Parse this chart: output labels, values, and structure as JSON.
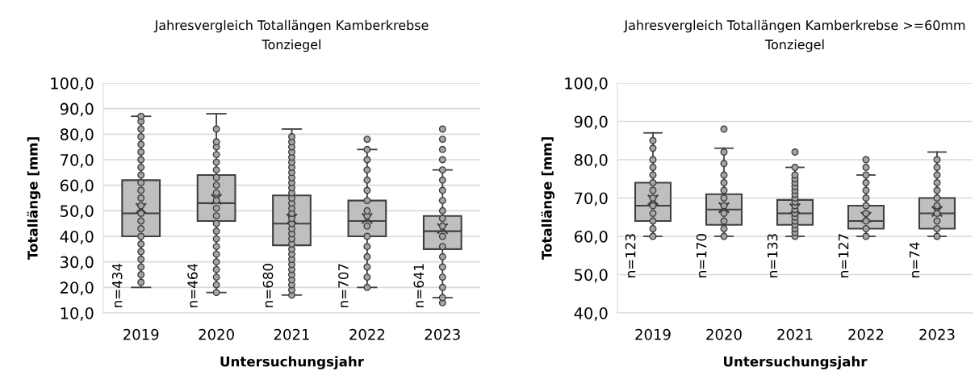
{
  "chart_data": [
    {
      "type": "box",
      "title": "Jahresvergleich Totallängen Kamberkrebse",
      "subtitle": "Tonziegel",
      "xlabel": "Untersuchungsjahr",
      "ylabel": "Totallänge [mm]",
      "x": [
        2019,
        2020,
        2021,
        2022,
        2023
      ],
      "color": "#bfbfbf",
      "boxes": [
        {
          "low": 20,
          "q1": 40,
          "median": 49,
          "q3": 62,
          "high": 87,
          "mean": 51
        },
        {
          "low": 18,
          "q1": 46,
          "median": 53,
          "q3": 64,
          "high": 88,
          "mean": 54.5
        },
        {
          "low": 17,
          "q1": 36.5,
          "median": 45,
          "q3": 56,
          "high": 82,
          "mean": 46.8
        },
        {
          "low": 20,
          "q1": 40,
          "median": 46,
          "q3": 54,
          "high": 74,
          "mean": 47
        },
        {
          "low": 16,
          "q1": 35,
          "median": 42,
          "q3": 48,
          "high": 66,
          "mean": 43
        }
      ],
      "series": [
        {
          "type": "scatter",
          "color": "#a6a6a6",
          "marker": "circle",
          "x": [
            2019,
            2019,
            2019,
            2019,
            2019,
            2019,
            2019,
            2019,
            2019,
            2019,
            2019,
            2019,
            2019,
            2019,
            2019,
            2019,
            2019,
            2019,
            2019,
            2019,
            2019,
            2019,
            2019,
            2020,
            2020,
            2020,
            2020,
            2020,
            2020,
            2020,
            2020,
            2020,
            2020,
            2020,
            2020,
            2020,
            2020,
            2020,
            2020,
            2020,
            2020,
            2020,
            2020,
            2020,
            2020,
            2021,
            2021,
            2021,
            2021,
            2021,
            2021,
            2021,
            2021,
            2021,
            2021,
            2021,
            2021,
            2021,
            2021,
            2021,
            2021,
            2021,
            2021,
            2021,
            2021,
            2021,
            2021,
            2021,
            2021,
            2021,
            2021,
            2021,
            2021,
            2021,
            2021,
            2021,
            2021,
            2022,
            2022,
            2022,
            2022,
            2022,
            2022,
            2022,
            2022,
            2022,
            2022,
            2022,
            2022,
            2022,
            2022,
            2022,
            2022,
            2023,
            2023,
            2023,
            2023,
            2023,
            2023,
            2023,
            2023,
            2023,
            2023,
            2023,
            2023,
            2023,
            2023,
            2023,
            2023,
            2023,
            2023,
            2023
          ],
          "values": [
            22,
            25,
            28,
            31,
            34,
            37,
            40,
            43,
            46,
            49,
            52,
            55,
            58,
            61,
            64,
            67,
            70,
            73,
            76,
            79,
            82,
            85,
            87,
            18,
            21,
            24,
            27,
            30,
            33,
            36,
            39,
            42,
            45,
            48,
            51,
            54,
            57,
            60,
            63,
            66,
            69,
            72,
            75,
            77,
            82,
            17,
            19,
            21,
            23,
            25,
            27,
            29,
            31,
            33,
            35,
            37,
            39,
            41,
            43,
            45,
            47,
            49,
            51,
            53,
            55,
            57,
            59,
            61,
            63,
            65,
            67,
            69,
            71,
            73,
            75,
            77,
            79,
            20,
            24,
            28,
            32,
            36,
            40,
            44,
            48,
            50,
            54,
            58,
            62,
            66,
            70,
            74,
            78,
            14,
            16,
            20,
            24,
            28,
            32,
            36,
            40,
            44,
            47,
            50,
            54,
            58,
            62,
            66,
            70,
            74,
            78,
            82
          ]
        }
      ],
      "xlim": [
        2018.5,
        2023.5
      ],
      "xticks": [
        2019,
        2020,
        2021,
        2022,
        2023
      ],
      "ylim": [
        10,
        100
      ],
      "yticks": [
        {
          "value": 10,
          "label": "10,0"
        },
        {
          "value": 20,
          "label": "20,0"
        },
        {
          "value": 30,
          "label": "30,0"
        },
        {
          "value": 40,
          "label": "40,0"
        },
        {
          "value": 50,
          "label": "50,0"
        },
        {
          "value": 60,
          "label": "60,0"
        },
        {
          "value": 70,
          "label": "70,0"
        },
        {
          "value": 80,
          "label": "80,0"
        },
        {
          "value": 90,
          "label": "90,0"
        },
        {
          "value": 100,
          "label": "100,0"
        }
      ],
      "grid": "y",
      "annotations": [
        "n=434",
        "n=464",
        "n=680",
        "n=707",
        "n=641"
      ]
    },
    {
      "type": "box",
      "title": "Jahresvergleich Totallängen Kamberkrebse >=60mm",
      "subtitle": "Tonziegel",
      "xlabel": "Untersuchungsjahr",
      "ylabel": "Totallänge [mm]",
      "x": [
        2019,
        2020,
        2021,
        2022,
        2023
      ],
      "color": "#bfbfbf",
      "boxes": [
        {
          "low": 60,
          "q1": 64,
          "median": 68,
          "q3": 74,
          "high": 87,
          "mean": 69.5
        },
        {
          "low": 60,
          "q1": 63,
          "median": 67,
          "q3": 71,
          "high": 83,
          "mean": 67.5
        },
        {
          "low": 60,
          "q1": 63,
          "median": 66,
          "q3": 69.5,
          "high": 78,
          "mean": 67.2
        },
        {
          "low": 60,
          "q1": 62,
          "median": 64,
          "q3": 68,
          "high": 76,
          "mean": 65
        },
        {
          "low": 60,
          "q1": 62,
          "median": 66,
          "q3": 70,
          "high": 82,
          "mean": 66.5
        }
      ],
      "series": [
        {
          "type": "scatter",
          "color": "#a6a6a6",
          "marker": "circle",
          "x": [
            2019,
            2019,
            2019,
            2019,
            2019,
            2019,
            2019,
            2019,
            2019,
            2019,
            2019,
            2019,
            2019,
            2020,
            2020,
            2020,
            2020,
            2020,
            2020,
            2020,
            2020,
            2020,
            2020,
            2020,
            2020,
            2021,
            2021,
            2021,
            2021,
            2021,
            2021,
            2021,
            2021,
            2021,
            2021,
            2021,
            2021,
            2021,
            2021,
            2021,
            2021,
            2021,
            2021,
            2021,
            2022,
            2022,
            2022,
            2022,
            2022,
            2022,
            2022,
            2022,
            2022,
            2022,
            2022,
            2023,
            2023,
            2023,
            2023,
            2023,
            2023,
            2023,
            2023,
            2023,
            2023,
            2023
          ],
          "values": [
            60,
            62,
            64,
            66,
            68,
            70,
            72,
            74,
            76,
            78,
            80,
            83,
            85,
            60,
            62,
            64,
            66,
            68,
            70,
            72,
            74,
            76,
            79,
            82,
            88,
            60,
            61,
            62,
            63,
            64,
            65,
            66,
            67,
            68,
            69,
            70,
            71,
            72,
            73,
            74,
            75,
            76,
            78,
            82,
            60,
            62,
            64,
            66,
            68,
            70,
            72,
            74,
            76,
            78,
            80,
            60,
            62,
            64,
            66,
            68,
            70,
            72,
            74,
            76,
            78,
            80
          ]
        }
      ],
      "xlim": [
        2018.5,
        2023.5
      ],
      "xticks": [
        2019,
        2020,
        2021,
        2022,
        2023
      ],
      "ylim": [
        40,
        100
      ],
      "yticks": [
        {
          "value": 40,
          "label": "40,0"
        },
        {
          "value": 50,
          "label": "50,0"
        },
        {
          "value": 60,
          "label": "60,0"
        },
        {
          "value": 70,
          "label": "70,0"
        },
        {
          "value": 80,
          "label": "80,0"
        },
        {
          "value": 90,
          "label": "90,0"
        },
        {
          "value": 100,
          "label": "100,0"
        }
      ],
      "grid": "y",
      "annotations": [
        "n=123",
        "n=170",
        "n=133",
        "n=127",
        "n=74"
      ]
    }
  ]
}
